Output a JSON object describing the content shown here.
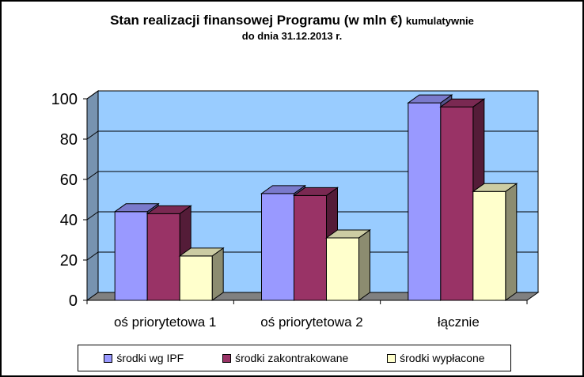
{
  "title": {
    "main": "Stan realizacji finansowej Programu (w mln €)",
    "suffix": "kumulatywnie",
    "sub": "do dnia 31.12.2013 r."
  },
  "colors": {
    "wall": "#99CCFF",
    "wall_side": "#7793B0",
    "floor": "#808080",
    "series": [
      "#9999FF",
      "#993366",
      "#FFFFCC"
    ]
  },
  "chart_data": {
    "type": "bar",
    "categories": [
      "oś priorytetowa 1",
      "oś priorytetowa 2",
      "łącznie"
    ],
    "series": [
      {
        "name": "środki wg IPF",
        "values": [
          44,
          53,
          98
        ]
      },
      {
        "name": "środki zakontrakowane",
        "values": [
          43,
          52,
          96
        ]
      },
      {
        "name": "środki wypłacone",
        "values": [
          22,
          31,
          54
        ]
      }
    ],
    "yticks": [
      "0",
      "20",
      "40",
      "60",
      "80",
      "100"
    ],
    "ylim": [
      0,
      100
    ],
    "grid": true,
    "legend_position": "bottom"
  }
}
